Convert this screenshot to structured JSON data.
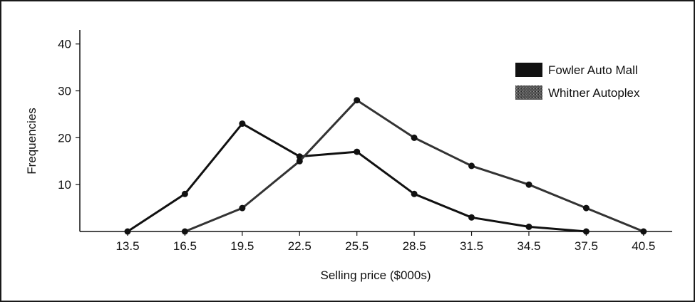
{
  "chart_data": {
    "type": "line",
    "title": "",
    "xlabel": "Selling price ($000s)",
    "ylabel": "Frequencies",
    "x": [
      13.5,
      16.5,
      19.5,
      22.5,
      25.5,
      28.5,
      31.5,
      34.5,
      37.5,
      40.5
    ],
    "x_tick_labels": [
      "13.5",
      "16.5",
      "19.5",
      "22.5",
      "25.5",
      "28.5",
      "31.5",
      "34.5",
      "37.5",
      "40.5"
    ],
    "y_tick_values": [
      10,
      20,
      30,
      40
    ],
    "y_tick_labels": [
      "10",
      "20",
      "30",
      "40"
    ],
    "xlim": [
      11,
      42
    ],
    "ylim": [
      0,
      43
    ],
    "grid": false,
    "legend_position": "top-right",
    "series": [
      {
        "name": "Fowler Auto Mall",
        "color": "#111111",
        "values": [
          0,
          8,
          23,
          16,
          17,
          8,
          3,
          1,
          0,
          null
        ]
      },
      {
        "name": "Whitner Autoplex",
        "color": "#333333",
        "values": [
          null,
          0,
          5,
          15,
          28,
          20,
          14,
          10,
          5,
          0
        ]
      }
    ]
  }
}
